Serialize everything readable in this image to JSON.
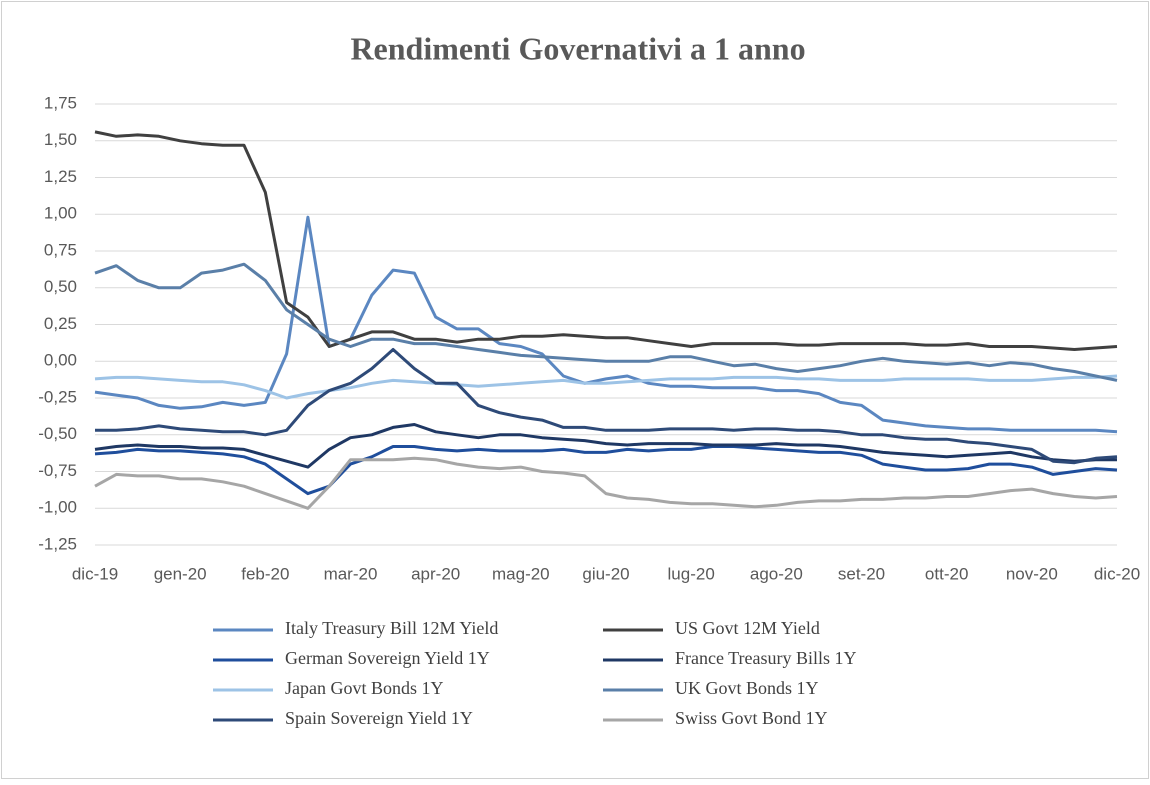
{
  "chart_data": {
    "type": "line",
    "title": "Rendimenti Governativi a 1 anno",
    "categories": [
      "dic-19",
      null,
      null,
      null,
      "gen-20",
      null,
      null,
      null,
      "feb-20",
      null,
      null,
      null,
      "mar-20",
      null,
      null,
      null,
      "apr-20",
      null,
      null,
      null,
      "mag-20",
      null,
      null,
      null,
      "giu-20",
      null,
      null,
      null,
      "lug-20",
      null,
      null,
      null,
      "ago-20",
      null,
      null,
      null,
      "set-20",
      null,
      null,
      null,
      "ott-20",
      null,
      null,
      null,
      "nov-20",
      null,
      null,
      null,
      "dic-20"
    ],
    "ylim": [
      -1.25,
      1.75
    ],
    "yticks": [
      {
        "value": -1.25,
        "label": "-1,25"
      },
      {
        "value": -1,
        "label": "-1,00"
      },
      {
        "value": -0.75,
        "label": "-0,75"
      },
      {
        "value": -0.5,
        "label": "-0,50"
      },
      {
        "value": -0.25,
        "label": "-0,25"
      },
      {
        "value": 0,
        "label": "0,00"
      },
      {
        "value": 0.25,
        "label": "0,25"
      },
      {
        "value": 0.5,
        "label": "0,50"
      },
      {
        "value": 0.75,
        "label": "0,75"
      },
      {
        "value": 1,
        "label": "1,00"
      },
      {
        "value": 1.25,
        "label": "1,25"
      },
      {
        "value": 1.5,
        "label": "1,50"
      },
      {
        "value": 1.75,
        "label": "1,75"
      }
    ],
    "grid": true,
    "legend": "bottom",
    "series": [
      {
        "name": "Italy Treasury Bill 12M Yield",
        "color": "#5b87c1",
        "values": [
          -0.21,
          -0.23,
          -0.25,
          -0.3,
          -0.32,
          -0.31,
          -0.28,
          -0.3,
          -0.28,
          0.05,
          0.98,
          0.1,
          0.15,
          0.45,
          0.62,
          0.6,
          0.3,
          0.22,
          0.22,
          0.12,
          0.1,
          0.05,
          -0.1,
          -0.15,
          -0.12,
          -0.1,
          -0.15,
          -0.17,
          -0.17,
          -0.18,
          -0.18,
          -0.18,
          -0.2,
          -0.2,
          -0.22,
          -0.28,
          -0.3,
          -0.4,
          -0.42,
          -0.44,
          -0.45,
          -0.46,
          -0.46,
          -0.47,
          -0.47,
          -0.47,
          -0.47,
          -0.47,
          -0.48
        ]
      },
      {
        "name": "US Govt 12M Yield",
        "color": "#404040",
        "values": [
          1.56,
          1.53,
          1.54,
          1.53,
          1.5,
          1.48,
          1.47,
          1.47,
          1.15,
          0.4,
          0.3,
          0.1,
          0.15,
          0.2,
          0.2,
          0.15,
          0.15,
          0.13,
          0.15,
          0.15,
          0.17,
          0.17,
          0.18,
          0.17,
          0.16,
          0.16,
          0.14,
          0.12,
          0.1,
          0.12,
          0.12,
          0.12,
          0.12,
          0.11,
          0.11,
          0.12,
          0.12,
          0.12,
          0.12,
          0.11,
          0.11,
          0.12,
          0.1,
          0.1,
          0.1,
          0.09,
          0.08,
          0.09,
          0.1
        ]
      },
      {
        "name": "German Sovereign Yield 1Y",
        "color": "#1f4e9c",
        "values": [
          -0.63,
          -0.62,
          -0.6,
          -0.61,
          -0.61,
          -0.62,
          -0.63,
          -0.65,
          -0.7,
          -0.8,
          -0.9,
          -0.85,
          -0.7,
          -0.65,
          -0.58,
          -0.58,
          -0.6,
          -0.61,
          -0.6,
          -0.61,
          -0.61,
          -0.61,
          -0.6,
          -0.62,
          -0.62,
          -0.6,
          -0.61,
          -0.6,
          -0.6,
          -0.58,
          -0.58,
          -0.59,
          -0.6,
          -0.61,
          -0.62,
          -0.62,
          -0.64,
          -0.7,
          -0.72,
          -0.74,
          -0.74,
          -0.73,
          -0.7,
          -0.7,
          -0.72,
          -0.77,
          -0.75,
          -0.73,
          -0.74
        ]
      },
      {
        "name": "France Treasury Bills 1Y",
        "color": "#1f3864",
        "values": [
          -0.6,
          -0.58,
          -0.57,
          -0.58,
          -0.58,
          -0.59,
          -0.59,
          -0.6,
          -0.64,
          -0.68,
          -0.72,
          -0.6,
          -0.52,
          -0.5,
          -0.45,
          -0.43,
          -0.48,
          -0.5,
          -0.52,
          -0.5,
          -0.5,
          -0.52,
          -0.53,
          -0.54,
          -0.56,
          -0.57,
          -0.56,
          -0.56,
          -0.56,
          -0.57,
          -0.57,
          -0.57,
          -0.56,
          -0.57,
          -0.57,
          -0.58,
          -0.6,
          -0.62,
          -0.63,
          -0.64,
          -0.65,
          -0.64,
          -0.63,
          -0.62,
          -0.65,
          -0.67,
          -0.68,
          -0.67,
          -0.67
        ]
      },
      {
        "name": "Japan Govt Bonds 1Y",
        "color": "#9dc3e6",
        "values": [
          -0.12,
          -0.11,
          -0.11,
          -0.12,
          -0.13,
          -0.14,
          -0.14,
          -0.16,
          -0.2,
          -0.25,
          -0.22,
          -0.2,
          -0.18,
          -0.15,
          -0.13,
          -0.14,
          -0.15,
          -0.16,
          -0.17,
          -0.16,
          -0.15,
          -0.14,
          -0.13,
          -0.15,
          -0.15,
          -0.14,
          -0.13,
          -0.12,
          -0.12,
          -0.12,
          -0.11,
          -0.11,
          -0.11,
          -0.12,
          -0.12,
          -0.13,
          -0.13,
          -0.13,
          -0.12,
          -0.12,
          -0.12,
          -0.12,
          -0.13,
          -0.13,
          -0.13,
          -0.12,
          -0.11,
          -0.11,
          -0.1
        ]
      },
      {
        "name": "UK Govt Bonds 1Y",
        "color": "#5a7fa8",
        "values": [
          0.6,
          0.65,
          0.55,
          0.5,
          0.5,
          0.6,
          0.62,
          0.66,
          0.55,
          0.35,
          0.25,
          0.15,
          0.1,
          0.15,
          0.15,
          0.12,
          0.12,
          0.1,
          0.08,
          0.06,
          0.04,
          0.03,
          0.02,
          0.01,
          0.0,
          0.0,
          0.0,
          0.03,
          0.03,
          0.0,
          -0.03,
          -0.02,
          -0.05,
          -0.07,
          -0.05,
          -0.03,
          0.0,
          0.02,
          0.0,
          -0.01,
          -0.02,
          -0.01,
          -0.03,
          -0.01,
          -0.02,
          -0.05,
          -0.07,
          -0.1,
          -0.13
        ]
      },
      {
        "name": "Spain Sovereign Yield 1Y",
        "color": "#2e4a78",
        "values": [
          -0.47,
          -0.47,
          -0.46,
          -0.44,
          -0.46,
          -0.47,
          -0.48,
          -0.48,
          -0.5,
          -0.47,
          -0.3,
          -0.2,
          -0.15,
          -0.05,
          0.08,
          -0.05,
          -0.15,
          -0.15,
          -0.3,
          -0.35,
          -0.38,
          -0.4,
          -0.45,
          -0.45,
          -0.47,
          -0.47,
          -0.47,
          -0.46,
          -0.46,
          -0.46,
          -0.47,
          -0.46,
          -0.46,
          -0.47,
          -0.47,
          -0.48,
          -0.5,
          -0.5,
          -0.52,
          -0.53,
          -0.53,
          -0.55,
          -0.56,
          -0.58,
          -0.6,
          -0.68,
          -0.69,
          -0.66,
          -0.65
        ]
      },
      {
        "name": "Swiss Govt Bond 1Y",
        "color": "#a6a6a6",
        "values": [
          -0.85,
          -0.77,
          -0.78,
          -0.78,
          -0.8,
          -0.8,
          -0.82,
          -0.85,
          -0.9,
          -0.95,
          -1.0,
          -0.85,
          -0.67,
          -0.67,
          -0.67,
          -0.66,
          -0.67,
          -0.7,
          -0.72,
          -0.73,
          -0.72,
          -0.75,
          -0.76,
          -0.78,
          -0.9,
          -0.93,
          -0.94,
          -0.96,
          -0.97,
          -0.97,
          -0.98,
          -0.99,
          -0.98,
          -0.96,
          -0.95,
          -0.95,
          -0.94,
          -0.94,
          -0.93,
          -0.93,
          -0.92,
          -0.92,
          -0.9,
          -0.88,
          -0.87,
          -0.9,
          -0.92,
          -0.93,
          -0.92
        ]
      }
    ]
  }
}
